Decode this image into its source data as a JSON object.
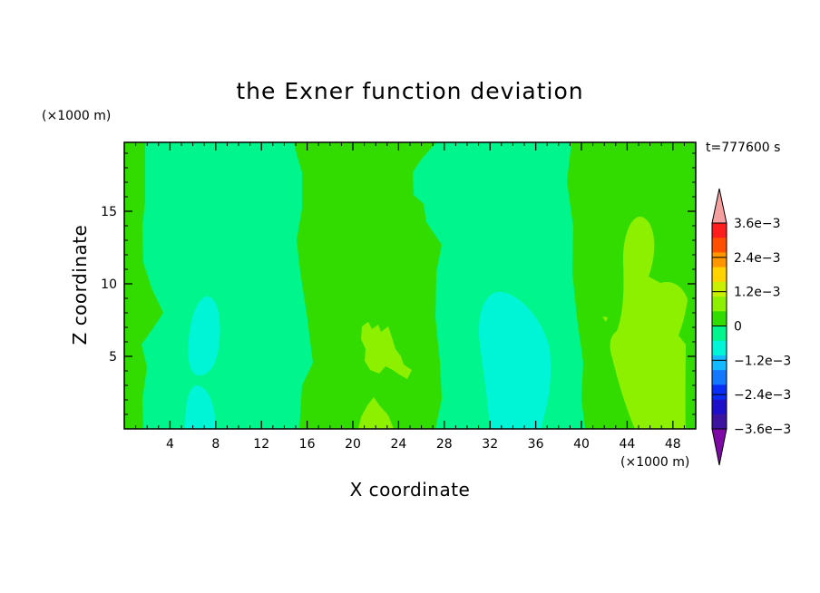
{
  "chart_data": {
    "type": "heatmap",
    "title": "the Exner function deviation",
    "xlabel": "X coordinate",
    "ylabel": "Z coordinate",
    "x_unit_label": "(×1000 m)",
    "z_unit_label": "(×1000 m)",
    "time_label": "t=777600 s",
    "xlim": [
      0,
      50
    ],
    "zlim": [
      0,
      19.75
    ],
    "xticks": [
      4,
      8,
      12,
      16,
      20,
      24,
      28,
      32,
      36,
      40,
      44,
      48
    ],
    "zticks": [
      5,
      10,
      15
    ],
    "colorbar": {
      "levels": [
        -0.0042,
        -0.0036,
        -0.003,
        -0.0024,
        -0.0018,
        -0.0012,
        -0.0006,
        0,
        0.0006,
        0.0012,
        0.0018,
        0.0024,
        0.003,
        0.0036,
        0.0042
      ],
      "colors": [
        "#7d0aa5",
        "#3c14a0",
        "#1e0fc8",
        "#0a2df5",
        "#1478ff",
        "#14b9ff",
        "#00f5d7",
        "#00f58c",
        "#32dc00",
        "#8cf000",
        "#c8f000",
        "#ffd200",
        "#ff9600",
        "#ff5000",
        "#ff1e1e",
        "#f5a0a0"
      ],
      "tick_labels": [
        "3.6e−3",
        "2.4e−3",
        "1.2e−3",
        "0",
        "−1.2e−3",
        "−2.4e−3",
        "−3.6e−3"
      ],
      "tick_values": [
        0.0036,
        0.0024,
        0.0012,
        0,
        -0.0012,
        -0.0024,
        -0.0036
      ]
    },
    "regions": [
      {
        "class": "0 to 6e-4",
        "color": "#32dc00",
        "x": [
          0,
          50
        ],
        "z": [
          0,
          19.75
        ],
        "note": "background field"
      },
      {
        "class": "-6e-4 to 0",
        "color": "#00f58c",
        "x": [
          1.8,
          16.2
        ],
        "z": [
          0,
          19.75
        ]
      },
      {
        "class": "-6e-4 to 0",
        "color": "#00f58c",
        "x": [
          27.3,
          40.2
        ],
        "z": [
          0,
          19.75
        ]
      },
      {
        "class": "-1.2e-3 to -6e-4",
        "color": "#00f5d7",
        "x": [
          5.5,
          8.5
        ],
        "z": [
          3.5,
          9.2
        ]
      },
      {
        "class": "-1.2e-3 to -6e-4",
        "color": "#00f5d7",
        "x": [
          5.3,
          8.0
        ],
        "z": [
          0,
          2.9
        ]
      },
      {
        "class": "-1.2e-3 to -6e-4",
        "color": "#00f5d7",
        "x": [
          31.2,
          37.5
        ],
        "z": [
          0,
          9.3
        ]
      },
      {
        "class": "6e-4 to 1.2e-3",
        "color": "#8cf000",
        "x": [
          42.2,
          49.2
        ],
        "z": [
          0,
          14.8
        ]
      },
      {
        "class": "6e-4 to 1.2e-3",
        "color": "#8cf000",
        "x": [
          20.3,
          25.0
        ],
        "z": [
          3.7,
          7.7
        ]
      },
      {
        "class": "6e-4 to 1.2e-3",
        "color": "#8cf000",
        "x": [
          20.0,
          23.5
        ],
        "z": [
          0,
          1.9
        ]
      }
    ]
  }
}
